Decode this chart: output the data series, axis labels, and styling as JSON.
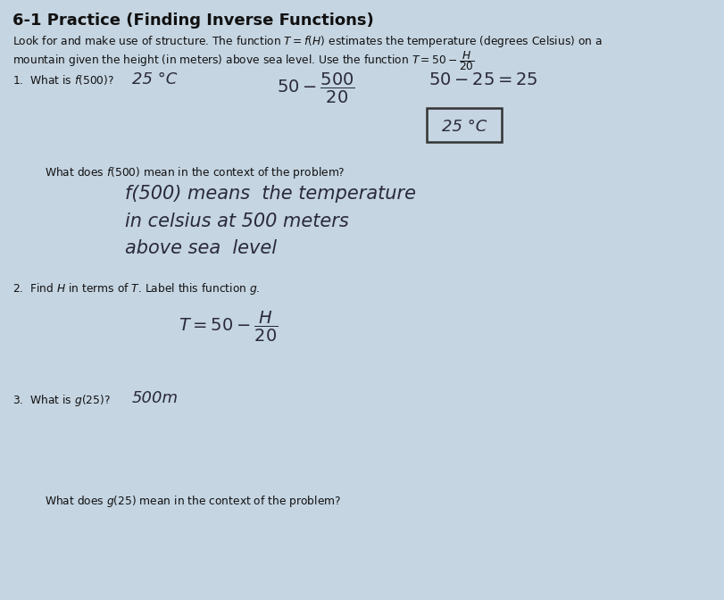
{
  "bg_color": "#c5d5e2",
  "title": "6-1 Practice (Finding Inverse Functions)",
  "intro_line1": "Look for and make use of structure. The function $T=f(H)$ estimates the temperature (degrees Celsius) on a",
  "intro_line2": "mountain given the height (in meters) above sea level. Use the function $T = 50 - \\dfrac{H}{20}$",
  "q1_label_printed": "1.  What is $f(500)$?  ",
  "q1_label_hand": "25 °C",
  "q1_work_a": "$50-\\dfrac{500}{20}$",
  "q1_work_b": "$50-25=25$",
  "q1_boxed": "25 °C",
  "q1_context_q": "What does $f(500)$ mean in the context of the problem?",
  "q1_ctx_h1": "f(500) means  the temperature",
  "q1_ctx_h2": "in celsius at 500 meters",
  "q1_ctx_h3": "above sea  level",
  "q2_label": "2.  Find $H$ in terms of $T$. Label this function $g$.",
  "q2_hand": "$T=50-\\dfrac{H}{20}$",
  "q3_label_printed": "3.  What is $g(25)$?  ",
  "q3_label_hand": "500m",
  "q3_context_q": "What does $g(25)$ mean in the context of the problem?",
  "hand_color": "#2a2a3a",
  "print_color": "#111111",
  "font_size_title": 13,
  "font_size_body": 8.8,
  "font_size_hand": 13,
  "font_size_hand_large": 15
}
